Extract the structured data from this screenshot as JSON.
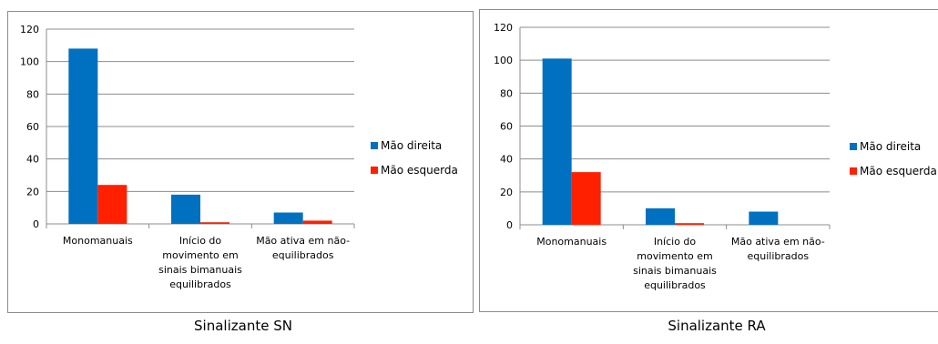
{
  "chart_data": [
    {
      "type": "bar",
      "title": "",
      "categories": [
        [
          "Monomanuais"
        ],
        [
          "Início do",
          "movimento em",
          "sinais bimanuais",
          "equilibrados"
        ],
        [
          "Mão ativa em não-",
          "equilibrados"
        ]
      ],
      "series": [
        {
          "name": "Mão direita",
          "values": [
            108,
            18,
            7
          ],
          "color": "#0070c0"
        },
        {
          "name": "Mão esquerda",
          "values": [
            24,
            1,
            2
          ],
          "color": "#ff2000"
        }
      ],
      "ylim": [
        0,
        120
      ],
      "yticks": [
        0,
        20,
        40,
        60,
        80,
        100,
        120
      ],
      "grid": true,
      "legend": "right",
      "caption": "Sinalizante SN"
    },
    {
      "type": "bar",
      "title": "",
      "categories": [
        [
          "Monomanuais"
        ],
        [
          "Início do",
          "movimento em",
          "sinais bimanuais",
          "equilibrados"
        ],
        [
          "Mão ativa em não-",
          "equilibrados"
        ]
      ],
      "series": [
        {
          "name": "Mão direita",
          "values": [
            101,
            10,
            8
          ],
          "color": "#0070c0"
        },
        {
          "name": "Mão esquerda",
          "values": [
            32,
            1,
            0
          ],
          "color": "#ff2000"
        }
      ],
      "ylim": [
        0,
        120
      ],
      "yticks": [
        0,
        20,
        40,
        60,
        80,
        100,
        120
      ],
      "grid": true,
      "legend": "right",
      "caption": "Sinalizante RA"
    }
  ]
}
